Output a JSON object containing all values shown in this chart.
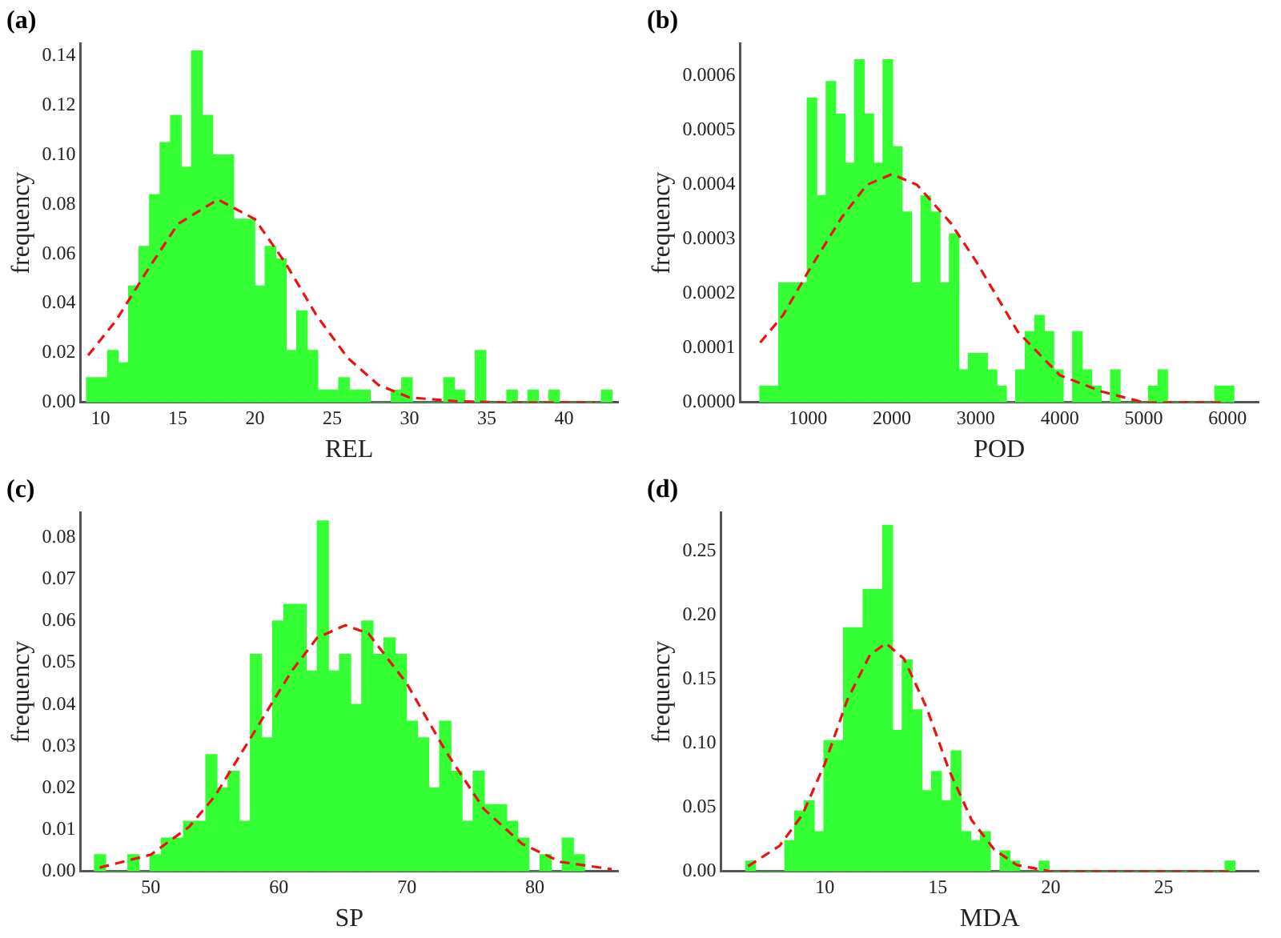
{
  "chart_data": [
    {
      "type": "histogram",
      "title": "(a)",
      "xlabel": "REL",
      "ylabel": "frequency",
      "bins": [
        9.1,
        9.78,
        10.46,
        11.14,
        11.82,
        12.5,
        13.18,
        13.86,
        14.54,
        15.22,
        15.9,
        16.58,
        17.26,
        17.94,
        18.62,
        19.3,
        19.98,
        20.66,
        21.34,
        22.02,
        22.7,
        23.38,
        24.06,
        24.74,
        25.42,
        26.1,
        26.78,
        27.46,
        28.14,
        28.82,
        29.5,
        30.18,
        30.86,
        31.54,
        32.22,
        32.9,
        33.58,
        34.26,
        34.94,
        35.62,
        36.3,
        36.98,
        37.66,
        38.34,
        39.02,
        39.7,
        40.38,
        41.06,
        41.74,
        42.42,
        43.1
      ],
      "series": [
        {
          "color": "#33ff33",
          "values": [
            0.01,
            0.01,
            0.021,
            0.016,
            0.047,
            0.063,
            0.084,
            0.105,
            0.116,
            0.095,
            0.142,
            0.116,
            0.1,
            0.1,
            0.074,
            0.074,
            0.047,
            0.063,
            0.058,
            0.021,
            0.037,
            0.021,
            0.005,
            0.005,
            0.01,
            0.005,
            0.005,
            0,
            0,
            0.005,
            0.01,
            0,
            0,
            0,
            0.01,
            0.005,
            0,
            0.021,
            0,
            0,
            0.005,
            0,
            0.005,
            0,
            0.005,
            0,
            0,
            0,
            0,
            0.005
          ]
        },
        {
          "type": "line",
          "line_style": "dashed",
          "color": "#ee1111",
          "x": [
            9.2,
            11,
            13,
            15,
            17.6,
            20,
            22,
            24,
            26,
            28,
            30,
            33,
            36,
            42
          ],
          "values": [
            0.019,
            0.033,
            0.053,
            0.072,
            0.082,
            0.074,
            0.056,
            0.035,
            0.018,
            0.007,
            0.002,
            0.0005,
            0,
            0
          ]
        }
      ],
      "xlim": [
        8.7,
        43.5
      ],
      "xticks": [
        10,
        15,
        20,
        25,
        30,
        35,
        40
      ],
      "ylim": [
        0,
        0.145
      ],
      "yticks": [
        {
          "value": 0,
          "label": "0.00"
        },
        {
          "value": 0.02,
          "label": "0.02"
        },
        {
          "value": 0.04,
          "label": "0.04"
        },
        {
          "value": 0.06,
          "label": "0.06"
        },
        {
          "value": 0.08,
          "label": "0.08"
        },
        {
          "value": 0.1,
          "label": "0.10"
        },
        {
          "value": 0.12,
          "label": "0.12"
        },
        {
          "value": 0.14,
          "label": "0.14"
        }
      ]
    },
    {
      "type": "histogram",
      "title": "(b)",
      "xlabel": "POD",
      "ylabel": "frequency",
      "bins": [
        425,
        538,
        651,
        764,
        877,
        990,
        1103,
        1216,
        1329,
        1442,
        1555,
        1668,
        1781,
        1894,
        2007,
        2120,
        2233,
        2346,
        2459,
        2572,
        2685,
        2798,
        2911,
        3024,
        3137,
        3250,
        3363,
        3476,
        3589,
        3702,
        3815,
        3928,
        4041,
        4154,
        4267,
        4380,
        4493,
        4606,
        4719,
        4832,
        4945,
        5058,
        5171,
        5284,
        5397,
        5510,
        5623,
        5736,
        5849,
        5962,
        6075
      ],
      "series": [
        {
          "color": "#33ff33",
          "values": [
            3e-05,
            3e-05,
            0.00022,
            0.00022,
            0.00022,
            0.00056,
            0.00038,
            0.00059,
            0.00053,
            0.00044,
            0.00063,
            0.00053,
            0.00044,
            0.00063,
            0.00047,
            0.00035,
            0.00022,
            0.00038,
            0.00035,
            0.00022,
            0.00031,
            6e-05,
            9e-05,
            9e-05,
            6e-05,
            3e-05,
            0,
            6e-05,
            0.00013,
            0.00016,
            0.00013,
            6e-05,
            0,
            0.00013,
            6e-05,
            3e-05,
            0,
            6e-05,
            0,
            0,
            0,
            3e-05,
            6e-05,
            0,
            0,
            0,
            0,
            0,
            3e-05,
            3e-05
          ]
        },
        {
          "type": "line",
          "line_style": "dashed",
          "color": "#ee1111",
          "x": [
            430,
            700,
            1000,
            1400,
            1700,
            2000,
            2300,
            2700,
            3000,
            3500,
            4000,
            4500,
            5000,
            6000
          ],
          "values": [
            0.00011,
            0.00016,
            0.00024,
            0.00034,
            0.0004,
            0.00042,
            0.0004,
            0.00033,
            0.00026,
            0.00013,
            5e-05,
            2e-05,
            0,
            0
          ]
        }
      ],
      "xlim": [
        190,
        6370
      ],
      "xticks": [
        1000,
        2000,
        3000,
        4000,
        5000,
        6000
      ],
      "ylim": [
        0,
        0.00066
      ],
      "yticks": [
        {
          "value": 0,
          "label": "0.0000"
        },
        {
          "value": 0.0001,
          "label": "0.0001"
        },
        {
          "value": 0.0002,
          "label": "0.0002"
        },
        {
          "value": 0.0003,
          "label": "0.0003"
        },
        {
          "value": 0.0004,
          "label": "0.0004"
        },
        {
          "value": 0.0005,
          "label": "0.0005"
        },
        {
          "value": 0.0006,
          "label": "0.0006"
        }
      ]
    },
    {
      "type": "histogram",
      "title": "(c)",
      "xlabel": "SP",
      "ylabel": "frequency",
      "bins": [
        45.6,
        46.47,
        47.34,
        48.21,
        49.08,
        49.95,
        50.82,
        51.69,
        52.56,
        53.43,
        54.3,
        55.17,
        56.04,
        56.91,
        57.78,
        58.65,
        59.52,
        60.39,
        61.26,
        62.13,
        63,
        63.87,
        64.74,
        65.61,
        66.48,
        67.35,
        68.22,
        69.09,
        69.96,
        70.83,
        71.7,
        72.57,
        73.44,
        74.31,
        75.18,
        76.05,
        76.92,
        77.79,
        78.66,
        79.53,
        80.4,
        81.27,
        82.14,
        83.01,
        83.88
      ],
      "series": [
        {
          "color": "#33ff33",
          "values": [
            0.004,
            0,
            0,
            0.004,
            0,
            0.004,
            0.008,
            0.008,
            0.012,
            0.012,
            0.028,
            0.02,
            0.024,
            0.012,
            0.052,
            0.032,
            0.06,
            0.064,
            0.064,
            0.048,
            0.084,
            0.048,
            0.052,
            0.04,
            0.06,
            0.052,
            0.056,
            0.052,
            0.036,
            0.032,
            0.02,
            0.036,
            0.024,
            0.012,
            0.024,
            0.016,
            0.016,
            0.012,
            0.008,
            0,
            0.004,
            0,
            0.008,
            0.004
          ]
        },
        {
          "type": "line",
          "line_style": "dashed",
          "color": "#ee1111",
          "x": [
            46,
            50,
            53,
            55,
            58,
            61,
            63,
            65.2,
            67,
            70,
            73,
            76,
            79,
            82,
            86
          ],
          "values": [
            0.0009,
            0.004,
            0.0107,
            0.018,
            0.033,
            0.048,
            0.056,
            0.059,
            0.057,
            0.045,
            0.029,
            0.015,
            0.0066,
            0.0023,
            0.0005
          ]
        }
      ],
      "xlim": [
        44.5,
        86.5
      ],
      "xticks": [
        50,
        60,
        70,
        80
      ],
      "ylim": [
        0,
        0.086
      ],
      "yticks": [
        {
          "value": 0,
          "label": "0.00"
        },
        {
          "value": 0.01,
          "label": "0.01"
        },
        {
          "value": 0.02,
          "label": "0.02"
        },
        {
          "value": 0.03,
          "label": "0.03"
        },
        {
          "value": 0.04,
          "label": "0.04"
        },
        {
          "value": 0.05,
          "label": "0.05"
        },
        {
          "value": 0.06,
          "label": "0.06"
        },
        {
          "value": 0.07,
          "label": "0.07"
        },
        {
          "value": 0.08,
          "label": "0.08"
        }
      ]
    },
    {
      "type": "histogram",
      "title": "(d)",
      "xlabel": "MDA",
      "ylabel": "frequency",
      "bins": [
        6.5,
        6.933,
        7.366,
        7.799,
        8.232,
        8.665,
        9.098,
        9.531,
        9.964,
        10.397,
        10.83,
        11.263,
        11.696,
        12.129,
        12.562,
        12.995,
        13.428,
        13.861,
        14.294,
        14.727,
        15.16,
        15.593,
        16.026,
        16.459,
        16.892,
        17.325,
        17.758,
        18.191,
        18.624,
        19.057,
        19.49,
        19.923,
        20.356,
        20.789,
        21.222,
        21.655,
        22.088,
        22.521,
        22.954,
        23.387,
        23.82,
        24.253,
        24.686,
        25.119,
        25.552,
        25.985,
        26.418,
        26.851,
        27.284,
        27.717,
        28.15
      ],
      "series": [
        {
          "color": "#33ff33",
          "values": [
            0.008,
            0,
            0,
            0,
            0.024,
            0.047,
            0.055,
            0.031,
            0.102,
            0.102,
            0.19,
            0.19,
            0.22,
            0.22,
            0.27,
            0.11,
            0.165,
            0.126,
            0.063,
            0.078,
            0.055,
            0.094,
            0.031,
            0.024,
            0.031,
            0,
            0.016,
            0.008,
            0,
            0,
            0.008,
            0,
            0,
            0,
            0,
            0,
            0,
            0,
            0,
            0,
            0,
            0,
            0,
            0,
            0,
            0,
            0,
            0,
            0,
            0.008
          ]
        },
        {
          "type": "line",
          "line_style": "dashed",
          "color": "#ee1111",
          "x": [
            6.6,
            8,
            9,
            10,
            11,
            12,
            12.7,
            13.5,
            14.5,
            15.5,
            16.5,
            17.5,
            18.5,
            20,
            22,
            28
          ],
          "values": [
            0.004,
            0.02,
            0.044,
            0.084,
            0.134,
            0.169,
            0.178,
            0.166,
            0.128,
            0.079,
            0.04,
            0.017,
            0.005,
            0,
            0,
            0
          ]
        }
      ],
      "xlim": [
        5.4,
        29.2
      ],
      "xticks": [
        10,
        15,
        20,
        25
      ],
      "ylim": [
        0,
        0.28
      ],
      "yticks": [
        {
          "value": 0,
          "label": "0.00"
        },
        {
          "value": 0.05,
          "label": "0.05"
        },
        {
          "value": 0.1,
          "label": "0.10"
        },
        {
          "value": 0.15,
          "label": "0.15"
        },
        {
          "value": 0.2,
          "label": "0.20"
        },
        {
          "value": 0.25,
          "label": "0.25"
        }
      ]
    }
  ]
}
